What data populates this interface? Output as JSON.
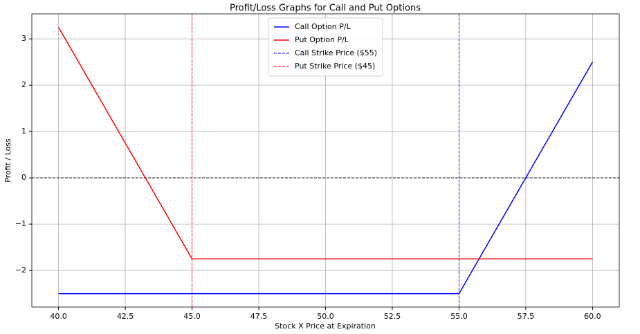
{
  "chart_data": {
    "type": "line",
    "title": "Profit/Loss Graphs for Call and Put Options",
    "xlabel": "Stock X Price at Expiration",
    "ylabel": "Profit / Loss",
    "x": [
      40,
      45,
      55,
      60
    ],
    "series": [
      {
        "name": "Call Option P/L",
        "color": "#0000ff",
        "values": [
          -2.5,
          -2.5,
          -2.5,
          2.5
        ]
      },
      {
        "name": "Put Option P/L",
        "color": "#ff0000",
        "values": [
          3.25,
          -1.75,
          -1.75,
          -1.75
        ]
      }
    ],
    "vlines": [
      {
        "name": "Call Strike Price ($55)",
        "color": "#0000ff",
        "x": 55
      },
      {
        "name": "Put Strike Price ($45)",
        "color": "#ff0000",
        "x": 45
      }
    ],
    "hlines": [
      {
        "value": 0,
        "color": "#000000"
      }
    ],
    "xlim": [
      39,
      61
    ],
    "ylim": [
      -2.79,
      3.54
    ],
    "xticks": [
      {
        "value": 40,
        "label": "40.0"
      },
      {
        "value": 42.5,
        "label": "42.5"
      },
      {
        "value": 45,
        "label": "45.0"
      },
      {
        "value": 47.5,
        "label": "47.5"
      },
      {
        "value": 50,
        "label": "50.0"
      },
      {
        "value": 52.5,
        "label": "52.5"
      },
      {
        "value": 55,
        "label": "55.0"
      },
      {
        "value": 57.5,
        "label": "57.5"
      },
      {
        "value": 60,
        "label": "60.0"
      }
    ],
    "yticks": [
      {
        "value": -2,
        "label": "−2"
      },
      {
        "value": -1,
        "label": "−1"
      },
      0,
      1,
      2,
      3
    ],
    "grid": true,
    "legend": "upper center"
  }
}
